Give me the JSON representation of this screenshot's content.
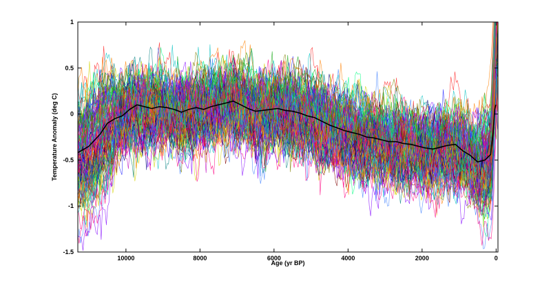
{
  "chart_data": {
    "type": "line",
    "title": "",
    "xlabel": "Age (yr BP)",
    "ylabel": "Temperature Anomaly (deg C)",
    "xlim": [
      11300,
      -50
    ],
    "ylim": [
      -1.5,
      1
    ],
    "x_reversed": true,
    "grid": false,
    "legend": "none",
    "xticks": [
      10000,
      8000,
      6000,
      4000,
      2000,
      0
    ],
    "xtick_labels": [
      "10000",
      "8000",
      "6000",
      "4000",
      "2000",
      "0"
    ],
    "yticks": [
      1,
      0.5,
      0,
      -0.5,
      -1,
      -1.5
    ],
    "ytick_labels": [
      "1",
      "0.5",
      "0",
      "-0.5",
      "-1",
      "-1.5"
    ],
    "ensemble": {
      "count": 120,
      "colors": [
        "#1f1fff",
        "#ff1f1f",
        "#14a814",
        "#00bfbf",
        "#bf00bf",
        "#d4d400",
        "#000080",
        "#800000",
        "#ff8000",
        "#008080",
        "#8000ff",
        "#00ff80",
        "#ff0080",
        "#808000",
        "#4080ff"
      ],
      "spread_min": 0.28,
      "spread_max": 0.6,
      "note_visible": false
    },
    "series": [
      {
        "color": "#000000",
        "x": [
          11300,
          11000,
          10700,
          10500,
          10300,
          10100,
          9900,
          9700,
          9500,
          9300,
          9100,
          8900,
          8700,
          8500,
          8300,
          8100,
          7900,
          7700,
          7500,
          7300,
          7100,
          6900,
          6700,
          6500,
          6300,
          6100,
          5900,
          5700,
          5500,
          5300,
          5100,
          4900,
          4700,
          4500,
          4300,
          4100,
          3900,
          3700,
          3500,
          3300,
          3100,
          2900,
          2700,
          2500,
          2300,
          2100,
          1900,
          1700,
          1500,
          1300,
          1100,
          900,
          700,
          500,
          300,
          150,
          80,
          40,
          10
        ],
        "y": [
          -0.42,
          -0.35,
          -0.22,
          -0.1,
          -0.05,
          -0.02,
          0.05,
          0.1,
          0.08,
          0.06,
          0.08,
          0.07,
          0.05,
          0.02,
          0.05,
          0.07,
          0.05,
          0.08,
          0.1,
          0.12,
          0.14,
          0.1,
          0.06,
          0.03,
          0.04,
          0.05,
          0.06,
          0.04,
          0.03,
          0.01,
          -0.02,
          -0.04,
          -0.08,
          -0.12,
          -0.15,
          -0.18,
          -0.2,
          -0.22,
          -0.25,
          -0.26,
          -0.28,
          -0.3,
          -0.3,
          -0.32,
          -0.33,
          -0.35,
          -0.37,
          -0.38,
          -0.36,
          -0.34,
          -0.33,
          -0.4,
          -0.45,
          -0.52,
          -0.5,
          -0.44,
          -0.2,
          0.05,
          0.1
        ]
      }
    ]
  }
}
